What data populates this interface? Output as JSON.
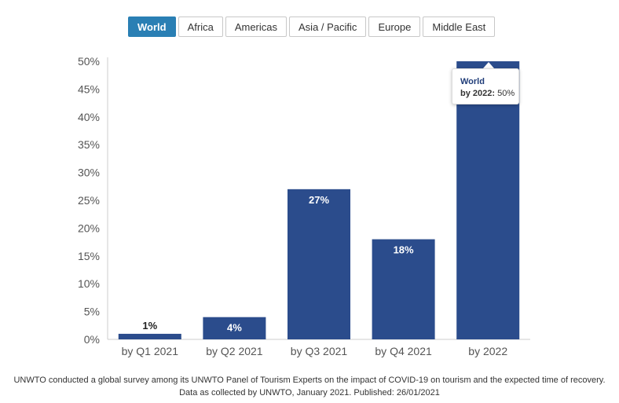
{
  "tabs": [
    {
      "label": "World",
      "active": true
    },
    {
      "label": "Africa",
      "active": false
    },
    {
      "label": "Americas",
      "active": false
    },
    {
      "label": "Asia / Pacific",
      "active": false
    },
    {
      "label": "Europe",
      "active": false
    },
    {
      "label": "Middle East",
      "active": false
    }
  ],
  "colors": {
    "bar": "#2b4c8c",
    "active_tab": "#2a7fb4"
  },
  "chart_data": {
    "type": "bar",
    "categories": [
      "by Q1 2021",
      "by Q2 2021",
      "by Q3 2021",
      "by Q4 2021",
      "by 2022"
    ],
    "values": [
      1,
      4,
      27,
      18,
      50
    ],
    "value_labels": [
      "1%",
      "4%",
      "27%",
      "18%",
      ""
    ],
    "yticks": [
      "0%",
      "5%",
      "10%",
      "15%",
      "20%",
      "25%",
      "30%",
      "35%",
      "40%",
      "45%",
      "50%"
    ],
    "ylim": [
      0,
      50
    ],
    "grid": false
  },
  "tooltip": {
    "title": "World",
    "key": "by 2022:",
    "value": "50%"
  },
  "caption": {
    "line1": "UNWTO conducted a global survey among its UNWTO Panel of Tourism Experts on the impact of COVID-19 on tourism and the expected time of recovery.",
    "line2": "Data as collected by UNWTO, January 2021. Published: 26/01/2021"
  }
}
